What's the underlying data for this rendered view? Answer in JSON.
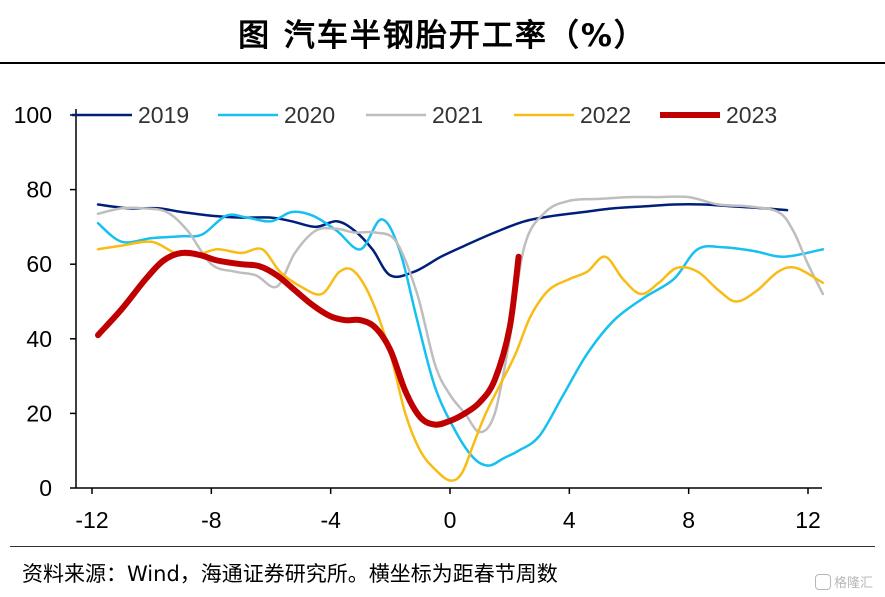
{
  "title": "图    汽车半钢胎开工率（%）",
  "source": "资料来源：Wind，海通证券研究所。横坐标为距春节周数",
  "watermark": "格隆汇",
  "chart_data": {
    "type": "line",
    "title": "图    汽车半钢胎开工率（%）",
    "xlabel": "",
    "ylabel": "",
    "xlim": [
      -12.5,
      12.5
    ],
    "ylim": [
      0,
      100
    ],
    "x_ticks": [
      -12,
      -8,
      -4,
      0,
      4,
      8,
      12
    ],
    "y_ticks": [
      0,
      20,
      40,
      60,
      80,
      100
    ],
    "grid": false,
    "legend": "top",
    "series": [
      {
        "name": "2019",
        "color": "#001f7a",
        "width": 2.5,
        "x": [
          -11.8,
          -10.8,
          -9.8,
          -9,
          -8,
          -7,
          -6,
          -5.3,
          -4.5,
          -3.8,
          -3.2,
          -2.6,
          -2,
          -1.2,
          -0.3,
          0.5,
          1.5,
          2.5,
          3.5,
          4.5,
          5.5,
          6.5,
          7.5,
          8.5,
          9.5,
          10.5,
          11.3
        ],
        "y": [
          76,
          75,
          75,
          74,
          73,
          72.5,
          72.5,
          71.5,
          70,
          71.5,
          69,
          64,
          57,
          58,
          62,
          65,
          68.5,
          71.5,
          73,
          74,
          75,
          75.5,
          76,
          76,
          75.5,
          75,
          74.5
        ]
      },
      {
        "name": "2020",
        "color": "#16c0f0",
        "width": 2.5,
        "x": [
          -11.8,
          -11,
          -10,
          -9,
          -8.3,
          -7.5,
          -6.8,
          -6,
          -5.3,
          -4.6,
          -3.8,
          -3,
          -2.3,
          -1.7,
          -1.1,
          -0.5,
          0.2,
          0.8,
          1.3,
          1.8,
          2.3,
          3,
          3.8,
          4.6,
          5.5,
          6.5,
          7.5,
          8.3,
          9.2,
          10.2,
          11.2,
          12.5
        ],
        "y": [
          71,
          66,
          67,
          67.5,
          68,
          73,
          72.5,
          71.5,
          74,
          73,
          69,
          64,
          72,
          64,
          45,
          27,
          15,
          8,
          6,
          8,
          10,
          14,
          25,
          36,
          45,
          51,
          56,
          64,
          64.5,
          63.5,
          62,
          64
        ]
      },
      {
        "name": "2021",
        "color": "#bebebe",
        "width": 2.5,
        "x": [
          -11.8,
          -11,
          -10.3,
          -9.5,
          -8.8,
          -8,
          -7.2,
          -6.5,
          -5.8,
          -5.2,
          -4.5,
          -3.8,
          -3.2,
          -2.5,
          -1.8,
          -1.1,
          -0.5,
          0,
          0.5,
          1,
          1.5,
          2,
          2.5,
          3.2,
          4,
          5,
          6,
          7,
          8,
          9,
          10,
          11,
          11.5,
          12,
          12.5
        ],
        "y": [
          73.5,
          75,
          75,
          74,
          69,
          60,
          58,
          57,
          54,
          63,
          69,
          69.5,
          68.5,
          68.5,
          66,
          52,
          33,
          25,
          20,
          15,
          20,
          40,
          65,
          74,
          77,
          77.5,
          78,
          78,
          78,
          76,
          75.5,
          74,
          69,
          60,
          52
        ]
      },
      {
        "name": "2022",
        "color": "#f9bc15",
        "width": 2.5,
        "x": [
          -11.8,
          -11,
          -10,
          -9.2,
          -8.5,
          -7.8,
          -7,
          -6.3,
          -5.7,
          -5,
          -4.3,
          -3.7,
          -3.2,
          -2.6,
          -2,
          -1.5,
          -1,
          -0.5,
          0,
          0.4,
          0.8,
          1.2,
          1.7,
          2.2,
          2.7,
          3.3,
          4,
          4.6,
          5.2,
          5.8,
          6.4,
          7,
          7.6,
          8.3,
          9,
          9.6,
          10.3,
          11,
          11.6,
          12.5
        ],
        "y": [
          64,
          65,
          66,
          63,
          62.5,
          64,
          63,
          64,
          58,
          54,
          52,
          58,
          58,
          50,
          36,
          20,
          10,
          5,
          2,
          4,
          12,
          20,
          28,
          36,
          46,
          53,
          56,
          58,
          62,
          56,
          52,
          55,
          59,
          58,
          53,
          50,
          53,
          58,
          59,
          55
        ]
      },
      {
        "name": "2023",
        "color": "#c00000",
        "width": 6,
        "x": [
          -11.8,
          -11,
          -10.2,
          -9.6,
          -9,
          -8.4,
          -7.8,
          -7,
          -6.4,
          -5.8,
          -5.2,
          -4.6,
          -4,
          -3.5,
          -3,
          -2.5,
          -2,
          -1.5,
          -1,
          -0.5,
          0,
          0.5,
          1,
          1.5,
          2,
          2.3
        ],
        "y": [
          41,
          48,
          56,
          61,
          63,
          62.5,
          61,
          60,
          59.5,
          57,
          53,
          49,
          46,
          45,
          45,
          43,
          37,
          26,
          19,
          17,
          18,
          20,
          23,
          29,
          43,
          62
        ]
      }
    ]
  }
}
